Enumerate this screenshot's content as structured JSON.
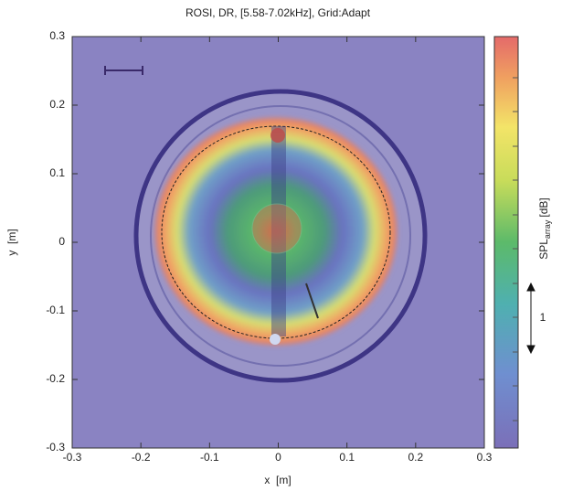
{
  "chart_data": {
    "type": "heatmap",
    "title": "ROSI, DR, [5.58-7.02kHz], Grid:Adapt",
    "x_label": "x  [m]",
    "y_label": "y  [m]",
    "xlim": [
      -0.3,
      0.3
    ],
    "ylim": [
      -0.3,
      0.3
    ],
    "xticks": [
      -0.3,
      -0.2,
      -0.1,
      0,
      0.1,
      0.2,
      0.3
    ],
    "yticks": [
      -0.3,
      -0.2,
      -0.1,
      0,
      0.1,
      0.2,
      0.3
    ],
    "colorbar_label": "SPL",
    "colorbar_label_sub": "array",
    "colorbar_unit": "[dB]",
    "colorbar_annotation": "1"
  }
}
